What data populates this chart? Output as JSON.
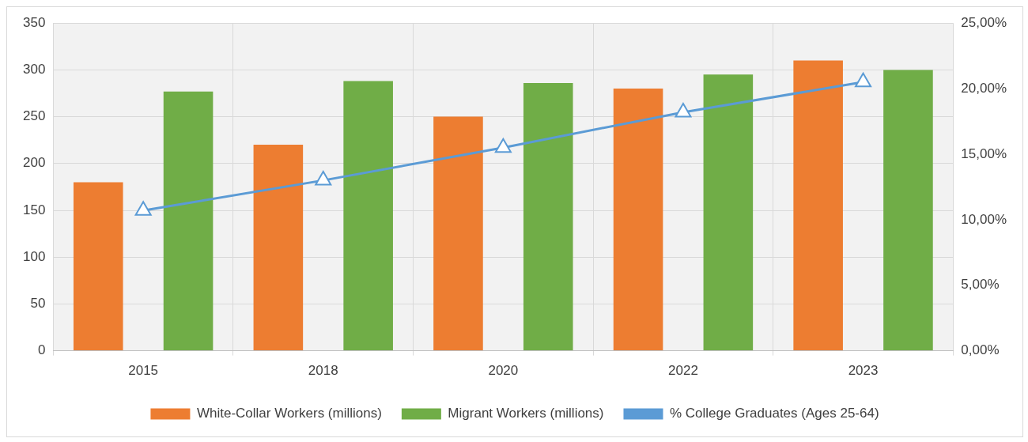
{
  "chart_data": {
    "type": "bar",
    "categories": [
      "2015",
      "2018",
      "2020",
      "2022",
      "2023"
    ],
    "series": [
      {
        "name": "White-Collar Workers (millions)",
        "color": "#ed7d31",
        "values": [
          180,
          220,
          250,
          280,
          310
        ]
      },
      {
        "name": "Migrant Workers (millions)",
        "color": "#70ad47",
        "values": [
          277,
          288,
          286,
          295,
          300
        ]
      },
      {
        "name": "% College Graduates (Ages 25-64)",
        "color": "#5b9bd5",
        "type": "line",
        "axis": "y2",
        "marker": "triangle",
        "values": [
          10.7,
          13.0,
          15.5,
          18.2,
          20.5
        ]
      }
    ],
    "ylim": [
      0,
      350
    ],
    "yticks": [
      0,
      50,
      100,
      150,
      200,
      250,
      300,
      350
    ],
    "y2lim": [
      0,
      25
    ],
    "y2ticks": [
      {
        "value": 0,
        "label": "0,00%"
      },
      {
        "value": 5,
        "label": "5,00%"
      },
      {
        "value": 10,
        "label": "10,00%"
      },
      {
        "value": 15,
        "label": "15,00%"
      },
      {
        "value": 20,
        "label": "20,00%"
      },
      {
        "value": 25,
        "label": "25,00%"
      }
    ],
    "grid": true,
    "legend": "bottom"
  }
}
